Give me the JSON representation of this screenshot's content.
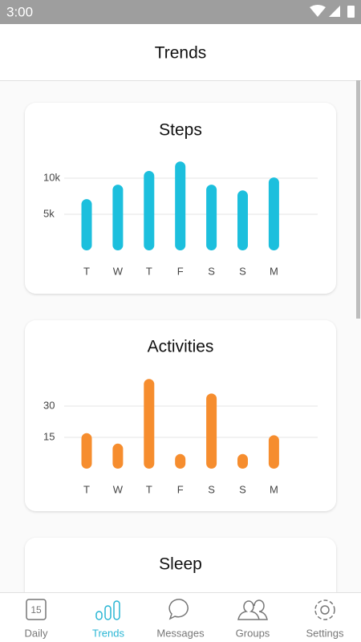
{
  "status_bar": {
    "time": "3:00"
  },
  "header": {
    "title": "Trends"
  },
  "chart_data": [
    {
      "type": "bar",
      "title": "Steps",
      "categories": [
        "T",
        "W",
        "T",
        "F",
        "S",
        "S",
        "M"
      ],
      "values": [
        7100,
        9100,
        11000,
        12300,
        9100,
        8300,
        10100
      ],
      "color": "#1cbfdd",
      "ylim": [
        0,
        13000
      ],
      "yticks": [
        {
          "value": 5000,
          "label": "5k"
        },
        {
          "value": 10000,
          "label": "10k"
        }
      ],
      "grid": true
    },
    {
      "type": "bar",
      "title": "Activities",
      "categories": [
        "T",
        "W",
        "T",
        "F",
        "S",
        "S",
        "M"
      ],
      "values": [
        17,
        12,
        43,
        7,
        36,
        7,
        16
      ],
      "color": "#f68d2e",
      "ylim": [
        0,
        45
      ],
      "yticks": [
        15,
        30
      ],
      "grid": true
    }
  ],
  "sleep_card": {
    "title": "Sleep"
  },
  "nav": {
    "active": 1,
    "items": [
      {
        "label": "Daily",
        "badge": "15"
      },
      {
        "label": "Trends"
      },
      {
        "label": "Messages"
      },
      {
        "label": "Groups"
      },
      {
        "label": "Settings"
      }
    ]
  }
}
